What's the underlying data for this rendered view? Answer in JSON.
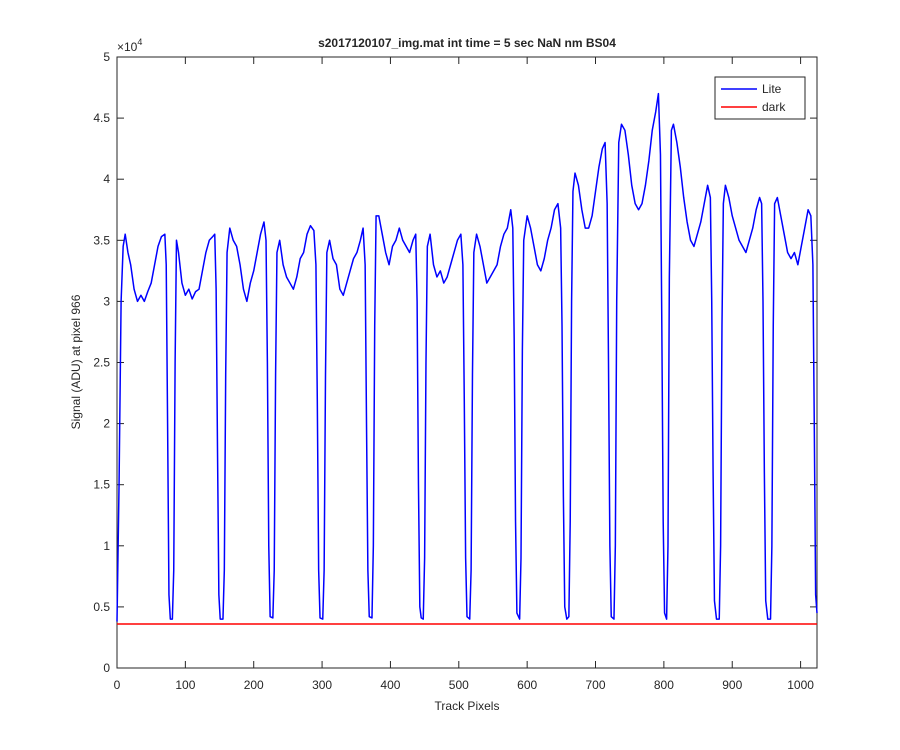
{
  "chart_data": {
    "type": "line",
    "title": "s2017120107_img.mat int time = 5 sec  NaN nm BS04",
    "x_label": "Track Pixels",
    "y_label": "Signal (ADU) at pixel 966",
    "y_multiplier": {
      "base": "×10",
      "exponent": "4"
    },
    "xlim": [
      0,
      1024
    ],
    "ylim": [
      0,
      50000
    ],
    "xticks": [
      0,
      100,
      200,
      300,
      400,
      500,
      600,
      700,
      800,
      900,
      1000
    ],
    "yticks": [
      0,
      {
        "value": 5000,
        "label": "0.5"
      },
      {
        "value": 10000,
        "label": "1"
      },
      {
        "value": 15000,
        "label": "1.5"
      },
      {
        "value": 20000,
        "label": "2"
      },
      {
        "value": 25000,
        "label": "2.5"
      },
      {
        "value": 30000,
        "label": "3"
      },
      {
        "value": 35000,
        "label": "3.5"
      },
      {
        "value": 40000,
        "label": "4"
      },
      {
        "value": 45000,
        "label": "4.5"
      },
      {
        "value": 50000,
        "label": "5"
      }
    ],
    "grid": false,
    "legend": "top-right",
    "series": [
      {
        "name": "Lite",
        "color": "#0000ff",
        "x": [
          0,
          3,
          6,
          9,
          12,
          16,
          20,
          25,
          30,
          35,
          40,
          45,
          50,
          55,
          60,
          65,
          70,
          72,
          74,
          76,
          78,
          81,
          83,
          85,
          87,
          90,
          95,
          100,
          105,
          110,
          115,
          120,
          125,
          130,
          135,
          140,
          143,
          145,
          147,
          149,
          151,
          155,
          157,
          159,
          161,
          165,
          170,
          175,
          180,
          185,
          190,
          195,
          200,
          205,
          210,
          215,
          218,
          220,
          222,
          224,
          228,
          230,
          232,
          234,
          238,
          243,
          248,
          253,
          258,
          263,
          268,
          273,
          278,
          283,
          288,
          291,
          293,
          295,
          297,
          301,
          303,
          305,
          307,
          311,
          316,
          321,
          326,
          331,
          336,
          341,
          346,
          351,
          356,
          360,
          363,
          365,
          367,
          369,
          373,
          375,
          377,
          379,
          383,
          388,
          393,
          398,
          403,
          408,
          413,
          418,
          423,
          428,
          433,
          437,
          439,
          441,
          443,
          445,
          448,
          450,
          452,
          454,
          458,
          463,
          468,
          473,
          478,
          483,
          488,
          493,
          498,
          503,
          506,
          508,
          510,
          512,
          516,
          518,
          520,
          522,
          526,
          531,
          536,
          541,
          546,
          551,
          556,
          561,
          566,
          571,
          576,
          579,
          581,
          583,
          585,
          589,
          591,
          593,
          595,
          600,
          605,
          610,
          615,
          620,
          625,
          630,
          635,
          640,
          645,
          649,
          651,
          653,
          655,
          658,
          661,
          663,
          665,
          667,
          670,
          675,
          680,
          685,
          690,
          695,
          700,
          705,
          710,
          714,
          717,
          719,
          721,
          723,
          727,
          729,
          731,
          734,
          738,
          743,
          748,
          753,
          758,
          763,
          768,
          773,
          778,
          783,
          788,
          792,
          795,
          797,
          799,
          801,
          804,
          806,
          808,
          811,
          814,
          819,
          824,
          829,
          834,
          839,
          844,
          849,
          854,
          859,
          864,
          868,
          870,
          872,
          874,
          877,
          881,
          883,
          885,
          887,
          890,
          895,
          900,
          905,
          910,
          915,
          920,
          925,
          930,
          935,
          940,
          943,
          945,
          947,
          949,
          952,
          956,
          958,
          960,
          962,
          966,
          971,
          976,
          981,
          986,
          991,
          996,
          1001,
          1006,
          1011,
          1015,
          1018,
          1020,
          1022,
          1024
        ],
        "values": [
          3800,
          15000,
          30000,
          34500,
          35500,
          34000,
          33000,
          31000,
          30000,
          30500,
          30000,
          30800,
          31500,
          33000,
          34500,
          35300,
          35500,
          33000,
          20000,
          6000,
          4000,
          4000,
          8000,
          25000,
          35000,
          34000,
          31500,
          30500,
          31000,
          30200,
          30800,
          31000,
          32500,
          34000,
          35000,
          35300,
          35500,
          31000,
          18000,
          6000,
          4000,
          4000,
          8000,
          24000,
          34000,
          36000,
          35000,
          34500,
          33000,
          31000,
          30000,
          31500,
          32500,
          34000,
          35500,
          36500,
          35000,
          25000,
          10000,
          4200,
          4100,
          8000,
          24000,
          34000,
          35000,
          33000,
          32000,
          31500,
          31000,
          32000,
          33500,
          34000,
          35500,
          36200,
          35800,
          33000,
          22000,
          8000,
          4100,
          4000,
          8000,
          24000,
          34000,
          35000,
          33500,
          33000,
          31000,
          30500,
          31500,
          32500,
          33500,
          34000,
          35000,
          36000,
          33000,
          20000,
          8000,
          4200,
          4100,
          10000,
          28000,
          37000,
          37000,
          35500,
          34000,
          33000,
          34500,
          35000,
          36000,
          35000,
          34500,
          34000,
          35000,
          35500,
          30000,
          15000,
          5000,
          4100,
          4000,
          9000,
          25000,
          34500,
          35500,
          33000,
          32000,
          32500,
          31500,
          32000,
          33000,
          34000,
          35000,
          35500,
          33000,
          22000,
          9000,
          4200,
          4000,
          8000,
          24000,
          34000,
          35500,
          34500,
          33000,
          31500,
          32000,
          32500,
          33000,
          34500,
          35500,
          36000,
          37500,
          36000,
          27000,
          12000,
          4500,
          4000,
          9000,
          26000,
          35000,
          37000,
          36000,
          34500,
          33000,
          32500,
          33500,
          35000,
          36000,
          37500,
          38000,
          36000,
          28000,
          14000,
          5000,
          4000,
          4200,
          12000,
          30000,
          39000,
          40500,
          39500,
          37500,
          36000,
          36000,
          37000,
          39000,
          41000,
          42500,
          43000,
          38000,
          25000,
          10000,
          4200,
          4000,
          10000,
          30000,
          43000,
          44500,
          44000,
          42000,
          39500,
          38000,
          37500,
          38000,
          39500,
          41500,
          44000,
          45500,
          47000,
          42000,
          28000,
          12000,
          4500,
          4000,
          10000,
          32000,
          44000,
          44500,
          43000,
          41000,
          38500,
          36500,
          35000,
          34500,
          35500,
          36500,
          38000,
          39500,
          38500,
          30000,
          16000,
          5500,
          4000,
          4000,
          10000,
          28000,
          38000,
          39500,
          38500,
          37000,
          36000,
          35000,
          34500,
          34000,
          35000,
          36000,
          37500,
          38500,
          38000,
          30000,
          16000,
          5500,
          4000,
          4000,
          10000,
          28000,
          38000,
          38500,
          37000,
          35500,
          34000,
          33500,
          34000,
          33000,
          34500,
          36000,
          37500,
          37000,
          33000,
          20000,
          6000,
          4500
        ]
      },
      {
        "name": "dark",
        "color": "#ff0000",
        "x": [
          0,
          1024
        ],
        "values": [
          3600,
          3600
        ]
      }
    ]
  }
}
